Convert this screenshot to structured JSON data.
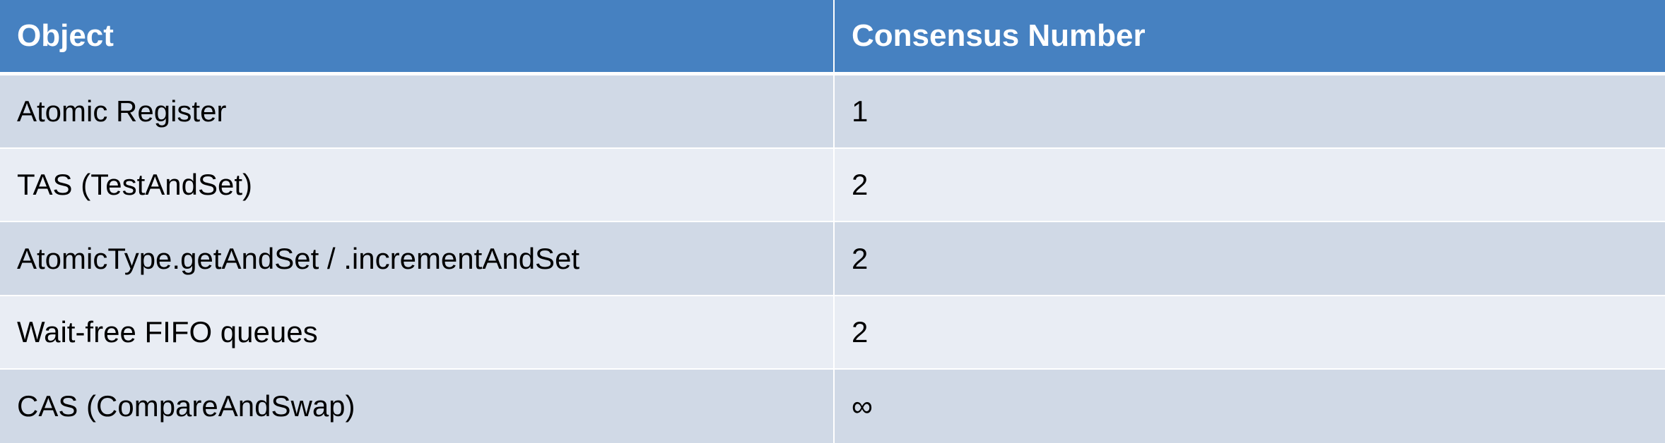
{
  "table": {
    "headers": [
      "Object",
      "Consensus Number"
    ],
    "rows": [
      [
        "Atomic Register",
        "1"
      ],
      [
        "TAS (TestAndSet)",
        "2"
      ],
      [
        "AtomicType.getAndSet / .incrementAndSet",
        "2"
      ],
      [
        "Wait-free FIFO queues",
        "2"
      ],
      [
        "CAS (CompareAndSwap)",
        "∞"
      ]
    ]
  },
  "colors": {
    "header_bg": "#4681c1",
    "row_odd_bg": "#d0d9e6",
    "row_even_bg": "#e9edf4",
    "header_text": "#ffffff",
    "body_text": "#000000"
  }
}
